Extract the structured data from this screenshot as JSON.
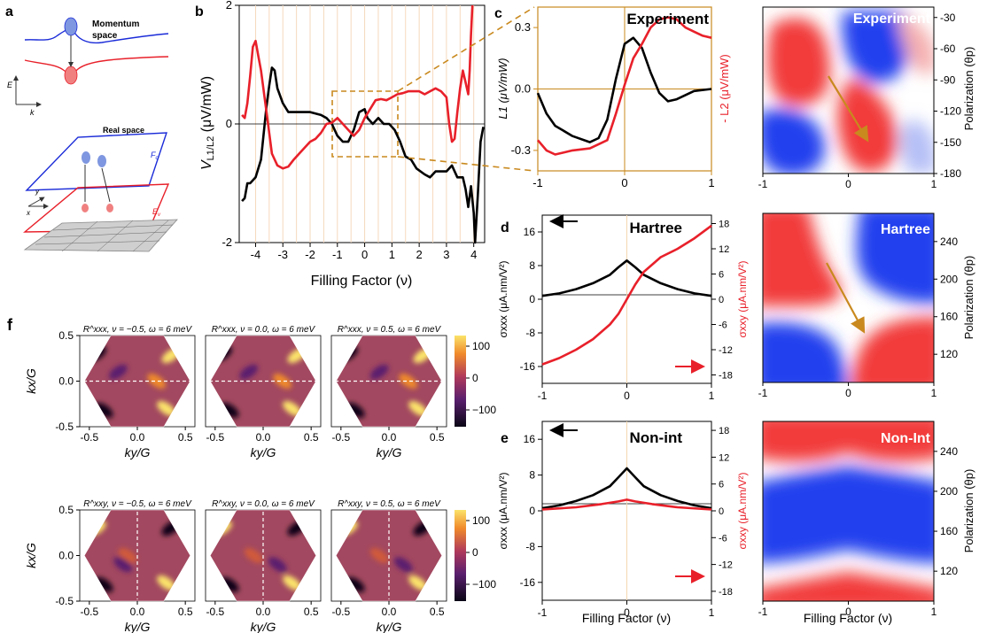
{
  "panel_letters": {
    "a": "a",
    "b": "b",
    "c": "c",
    "d": "d",
    "e": "e",
    "f": "f"
  },
  "colors": {
    "red": "#e8202a",
    "black": "#000000",
    "blue": "#1a2bd8",
    "orange": "#c9891e",
    "heat_low": "#0a0615",
    "heat_high": "#fbe36a"
  },
  "schematic": {
    "momentum_label": "Momentum\nspace",
    "real_label": "Real space",
    "e_axis": "E",
    "k_axis": "k",
    "x_axis": "x",
    "y_axis": "y",
    "fc_label": "F",
    "fc_sub": "c",
    "ev_label": "E",
    "ev_sub": "v"
  },
  "chart_data": [
    {
      "id": "b",
      "type": "line",
      "xlabel": "Filling Factor (ν)",
      "ylabel": "V",
      "ylabel_sub": "L1/L2",
      "ylabel_units": "(μV/mW)",
      "xlim": [
        -4.6,
        4.4
      ],
      "ylim": [
        -2,
        2
      ],
      "xticks": [
        -4,
        -3,
        -2,
        -1,
        0,
        1,
        2,
        3,
        4
      ],
      "yticks": [
        -2,
        0,
        2
      ],
      "series": [
        {
          "color": "black",
          "x": [
            -4.5,
            -4.4,
            -4.3,
            -4.2,
            -4.0,
            -3.8,
            -3.6,
            -3.5,
            -3.4,
            -3.3,
            -3.2,
            -3.0,
            -2.8,
            -2.6,
            -2.4,
            -2.0,
            -1.6,
            -1.4,
            -1.2,
            -1.0,
            -0.8,
            -0.6,
            -0.4,
            -0.2,
            0.0,
            0.1,
            0.3,
            0.5,
            0.7,
            0.9,
            1.1,
            1.3,
            1.5,
            1.7,
            1.9,
            2.2,
            2.4,
            2.6,
            2.8,
            3.0,
            3.2,
            3.4,
            3.6,
            3.7,
            3.8,
            3.9,
            4.0,
            4.05,
            4.15,
            4.25,
            4.35
          ],
          "y": [
            -1.3,
            -1.25,
            -1.0,
            -1.0,
            -0.9,
            -0.6,
            0.3,
            0.65,
            0.95,
            0.9,
            0.6,
            0.35,
            0.2,
            0.2,
            0.2,
            0.2,
            0.15,
            0.1,
            0.0,
            -0.2,
            -0.3,
            -0.3,
            -0.1,
            0.2,
            0.25,
            0.1,
            0.0,
            0.1,
            0.0,
            0.0,
            -0.1,
            -0.3,
            -0.55,
            -0.6,
            -0.75,
            -0.85,
            -0.9,
            -0.8,
            -0.8,
            -0.8,
            -0.7,
            -0.9,
            -0.9,
            -1.1,
            -1.4,
            -1.05,
            -1.5,
            -2.0,
            -1.2,
            -0.3,
            -0.05
          ]
        },
        {
          "color": "red",
          "x": [
            -4.5,
            -4.4,
            -4.3,
            -4.2,
            -4.1,
            -4.0,
            -3.9,
            -3.8,
            -3.6,
            -3.4,
            -3.2,
            -3.0,
            -2.8,
            -2.6,
            -2.4,
            -2.2,
            -2.0,
            -1.8,
            -1.6,
            -1.4,
            -1.2,
            -1.0,
            -0.8,
            -0.6,
            -0.4,
            -0.2,
            0.0,
            0.2,
            0.4,
            0.6,
            0.8,
            1.0,
            1.2,
            1.4,
            1.6,
            1.8,
            2.0,
            2.2,
            2.4,
            2.6,
            2.8,
            3.0,
            3.1,
            3.2,
            3.3,
            3.4,
            3.5,
            3.6,
            3.7,
            3.8,
            3.85,
            3.9,
            3.95
          ],
          "y": [
            0.15,
            0.1,
            0.35,
            0.8,
            1.3,
            1.4,
            1.15,
            0.9,
            0.2,
            -0.5,
            -0.7,
            -0.75,
            -0.72,
            -0.6,
            -0.5,
            -0.4,
            -0.3,
            -0.25,
            -0.15,
            0.0,
            0.02,
            0.1,
            0.0,
            -0.1,
            -0.2,
            -0.1,
            0.1,
            0.25,
            0.4,
            0.42,
            0.4,
            0.45,
            0.5,
            0.52,
            0.55,
            0.55,
            0.55,
            0.5,
            0.55,
            0.6,
            0.55,
            0.45,
            0.0,
            -0.3,
            -0.25,
            0.2,
            0.6,
            0.9,
            0.7,
            0.5,
            0.9,
            1.5,
            2.0
          ]
        }
      ]
    },
    {
      "id": "c",
      "type": "line",
      "title": "Experiment",
      "xlabel": "",
      "ylabel_left": "L1 (μV/mW)",
      "ylabel_right": "- L2 (μV/mW)",
      "xlim": [
        -1,
        1
      ],
      "ylim": [
        -0.4,
        0.4
      ],
      "xticks": [
        -1,
        0,
        1
      ],
      "yticks": [
        -0.3,
        0.0,
        0.3
      ],
      "series": [
        {
          "color": "black",
          "x": [
            -1.0,
            -0.9,
            -0.8,
            -0.6,
            -0.4,
            -0.3,
            -0.2,
            -0.1,
            0.0,
            0.1,
            0.2,
            0.3,
            0.4,
            0.5,
            0.6,
            0.8,
            1.0
          ],
          "y": [
            -0.02,
            -0.12,
            -0.18,
            -0.23,
            -0.26,
            -0.24,
            -0.15,
            0.05,
            0.22,
            0.25,
            0.2,
            0.08,
            -0.02,
            -0.06,
            -0.05,
            -0.01,
            0.0
          ]
        },
        {
          "color": "red",
          "x": [
            -1.0,
            -0.9,
            -0.8,
            -0.6,
            -0.4,
            -0.2,
            -0.1,
            0.0,
            0.1,
            0.2,
            0.3,
            0.4,
            0.5,
            0.6,
            0.7,
            0.8,
            0.9,
            1.0
          ],
          "y": [
            -0.25,
            -0.3,
            -0.32,
            -0.3,
            -0.29,
            -0.25,
            -0.12,
            0.02,
            0.15,
            0.22,
            0.3,
            0.34,
            0.35,
            0.34,
            0.3,
            0.28,
            0.26,
            0.25
          ]
        }
      ]
    },
    {
      "id": "d",
      "type": "line",
      "title": "Hartree",
      "ylabel_left": "σxxx (μA.nm/V²)",
      "ylabel_right": "σxxy (μA.nm/V²)",
      "xlim": [
        -1,
        1
      ],
      "ylim": [
        -20,
        20
      ],
      "y2lim": [
        -20,
        20
      ],
      "xticks": [
        -1,
        0,
        1
      ],
      "yticks": [
        -16,
        -8,
        0,
        8,
        16
      ],
      "y2ticks": [
        -18,
        -12,
        -6,
        0,
        6,
        12,
        18
      ],
      "series": [
        {
          "color": "black",
          "axis": "left",
          "x": [
            -1.0,
            -0.8,
            -0.6,
            -0.4,
            -0.2,
            -0.1,
            0.0,
            0.1,
            0.2,
            0.4,
            0.6,
            0.8,
            1.0
          ],
          "y": [
            0.8,
            1.4,
            2.4,
            3.8,
            5.8,
            7.6,
            9.2,
            7.6,
            5.8,
            3.8,
            2.4,
            1.4,
            0.8
          ]
        },
        {
          "color": "red",
          "axis": "right",
          "x": [
            -1.0,
            -0.8,
            -0.6,
            -0.4,
            -0.2,
            -0.1,
            0.0,
            0.1,
            0.2,
            0.4,
            0.6,
            0.8,
            1.0
          ],
          "y": [
            -15.5,
            -14.0,
            -12.0,
            -9.5,
            -6.0,
            -3.5,
            0.0,
            3.5,
            6.5,
            10.0,
            12.0,
            14.5,
            17.5
          ]
        }
      ]
    },
    {
      "id": "e",
      "type": "line",
      "title": "Non-int",
      "xlabel": "Filling Factor (ν)",
      "ylabel_left": "σxxx (μA.nm/V²)",
      "ylabel_right": "σxxy (μA.nm/V²)",
      "xlim": [
        -1,
        1
      ],
      "ylim": [
        -20,
        20
      ],
      "y2lim": [
        -20,
        20
      ],
      "xticks": [
        -1,
        0,
        1
      ],
      "yticks": [
        -16,
        -8,
        0,
        8,
        16
      ],
      "y2ticks": [
        -18,
        -12,
        -6,
        0,
        6,
        12,
        18
      ],
      "series": [
        {
          "color": "black",
          "axis": "left",
          "x": [
            -1.0,
            -0.8,
            -0.6,
            -0.4,
            -0.2,
            -0.1,
            0.0,
            0.1,
            0.2,
            0.4,
            0.6,
            0.8,
            1.0
          ],
          "y": [
            0.6,
            1.2,
            2.2,
            3.5,
            5.5,
            7.5,
            9.5,
            7.5,
            5.5,
            3.5,
            2.2,
            1.2,
            0.6
          ]
        },
        {
          "color": "red",
          "axis": "right",
          "x": [
            -1.0,
            -0.6,
            -0.3,
            -0.1,
            0.0,
            0.1,
            0.3,
            0.6,
            1.0
          ],
          "y": [
            0.3,
            0.8,
            1.5,
            2.1,
            2.5,
            2.1,
            1.5,
            0.8,
            0.3
          ]
        }
      ]
    },
    {
      "id": "c-map",
      "type": "heatmap",
      "title": "Experiment",
      "ylabel": "Polarization (θp)",
      "xlim": [
        -1,
        1
      ],
      "ylim": [
        -180,
        -20
      ],
      "xticks": [
        -1,
        0,
        1
      ],
      "yticks": [
        -30,
        -60,
        -90,
        -120,
        -150,
        -180
      ]
    },
    {
      "id": "d-map",
      "type": "heatmap",
      "title": "Hartree",
      "ylabel": "Polarization (θp)",
      "xlim": [
        -1,
        1
      ],
      "ylim": [
        90,
        270
      ],
      "xticks": [
        -1,
        0,
        1
      ],
      "yticks": [
        240,
        200,
        160,
        120
      ]
    },
    {
      "id": "e-map",
      "type": "heatmap",
      "title": "Non-Int",
      "xlabel": "Filling Factor (ν)",
      "ylabel": "Polarization (θp)",
      "xlim": [
        -1,
        1
      ],
      "ylim": [
        90,
        270
      ],
      "xticks": [
        -1,
        0,
        1
      ],
      "yticks": [
        240,
        200,
        160,
        120
      ]
    },
    {
      "id": "f",
      "type": "heatmap",
      "xlabel": "ky/G",
      "ylabel": "kx/G",
      "xlim": [
        -0.6,
        0.6
      ],
      "ylim": [
        -0.5,
        0.5
      ],
      "xticks": [
        -0.5,
        0.0,
        0.5
      ],
      "yticks": [
        0.5,
        0.0,
        -0.5
      ],
      "colorbar_ticks": [
        100,
        0,
        -100
      ],
      "panels": [
        {
          "title": "R^xxx, ν = −0.5, ω = 6 meV"
        },
        {
          "title": "R^xxx, ν = 0.0, ω = 6 meV"
        },
        {
          "title": "R^xxx, ν = 0.5, ω = 6 meV"
        },
        {
          "title": "R^xxy, ν = −0.5, ω = 6 meV"
        },
        {
          "title": "R^xxy, ν = 0.0, ω = 6 meV"
        },
        {
          "title": "R^xxy, ν = 0.5, ω = 6 meV"
        }
      ]
    }
  ]
}
